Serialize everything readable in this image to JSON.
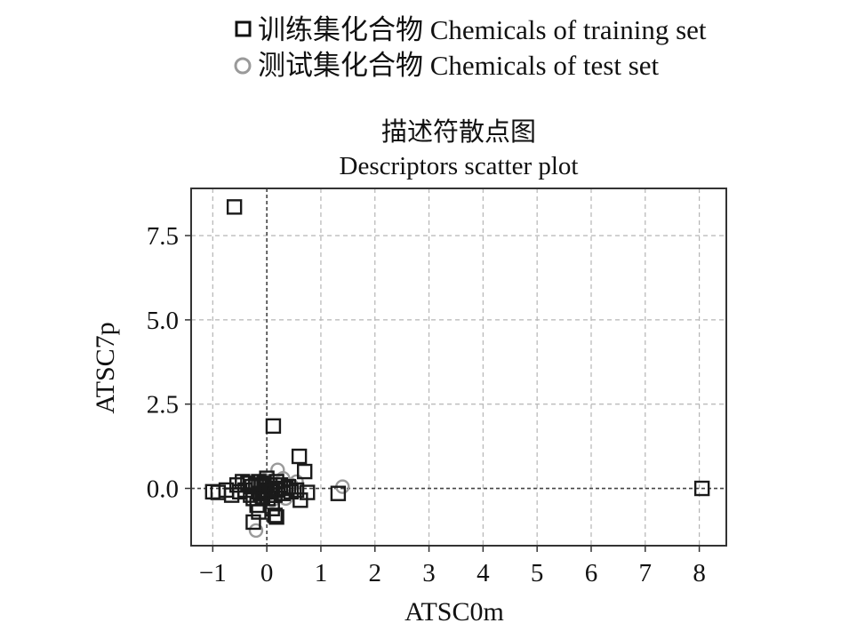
{
  "legend": {
    "items": [
      {
        "label": "训练集化合物 Chemicals of training set",
        "marker": "square"
      },
      {
        "label": "测试集化合物 Chemicals of test set",
        "marker": "circle"
      }
    ]
  },
  "chart_data": {
    "type": "scatter",
    "title": "描述符散点图",
    "subtitle": "Descriptors scatter plot",
    "xlabel": "ATSC0m",
    "ylabel": "ATSC7p",
    "xlim": [
      -1.4,
      8.5
    ],
    "ylim": [
      -1.7,
      8.9
    ],
    "xticks": [
      -1,
      0,
      1,
      2,
      3,
      4,
      5,
      6,
      7,
      8
    ],
    "yticks": [
      0.0,
      2.5,
      5.0,
      7.5
    ],
    "xtick_labels": [
      "−1",
      "0",
      "1",
      "2",
      "3",
      "4",
      "5",
      "6",
      "7",
      "8"
    ],
    "ytick_labels": [
      "0.0",
      "2.5",
      "5.0",
      "7.5"
    ],
    "grid": true,
    "zero_lines": true,
    "legend_position": "top-outside",
    "series": [
      {
        "name": "训练集化合物 Chemicals of training set",
        "marker": "square",
        "color": "#1a1a1a",
        "points": [
          [
            -0.6,
            8.35
          ],
          [
            0.12,
            1.85
          ],
          [
            0.6,
            0.95
          ],
          [
            0.7,
            0.5
          ],
          [
            8.05,
            0.0
          ],
          [
            1.32,
            -0.15
          ],
          [
            -1.0,
            -0.1
          ],
          [
            -0.9,
            -0.12
          ],
          [
            -0.75,
            -0.05
          ],
          [
            -0.65,
            -0.2
          ],
          [
            -0.55,
            0.1
          ],
          [
            -0.5,
            -0.1
          ],
          [
            -0.45,
            0.2
          ],
          [
            -0.4,
            -0.05
          ],
          [
            -0.35,
            0.15
          ],
          [
            -0.3,
            -0.2
          ],
          [
            -0.28,
            0.05
          ],
          [
            -0.25,
            -0.3
          ],
          [
            -0.2,
            0.1
          ],
          [
            -0.18,
            -0.5
          ],
          [
            -0.15,
            0.2
          ],
          [
            -0.12,
            -0.15
          ],
          [
            -0.1,
            0.05
          ],
          [
            -0.08,
            -0.25
          ],
          [
            -0.05,
            0.15
          ],
          [
            -0.02,
            -0.05
          ],
          [
            0.0,
            0.3
          ],
          [
            0.02,
            -0.3
          ],
          [
            0.05,
            0.1
          ],
          [
            0.08,
            -0.1
          ],
          [
            0.1,
            0.0
          ],
          [
            0.15,
            -0.2
          ],
          [
            0.18,
            0.2
          ],
          [
            0.2,
            -0.05
          ],
          [
            0.25,
            0.1
          ],
          [
            0.3,
            -0.15
          ],
          [
            0.35,
            0.0
          ],
          [
            0.4,
            0.05
          ],
          [
            0.45,
            -0.1
          ],
          [
            0.55,
            -0.05
          ],
          [
            0.62,
            -0.35
          ],
          [
            0.75,
            -0.12
          ],
          [
            -0.25,
            -1.0
          ],
          [
            0.15,
            -0.8
          ],
          [
            0.18,
            -0.85
          ],
          [
            -0.15,
            -0.7
          ],
          [
            0.1,
            -0.6
          ]
        ]
      },
      {
        "name": "测试集化合物 Chemicals of test set",
        "marker": "circle",
        "color": "#9a9a9a",
        "points": [
          [
            -0.2,
            -1.25
          ],
          [
            0.2,
            0.55
          ],
          [
            0.1,
            -0.35
          ],
          [
            0.3,
            0.3
          ],
          [
            0.45,
            0.1
          ],
          [
            -0.05,
            0.25
          ],
          [
            0.05,
            -0.15
          ],
          [
            -0.3,
            0.1
          ],
          [
            1.4,
            0.05
          ],
          [
            0.35,
            -0.3
          ],
          [
            0.55,
            0.2
          ]
        ]
      }
    ]
  }
}
